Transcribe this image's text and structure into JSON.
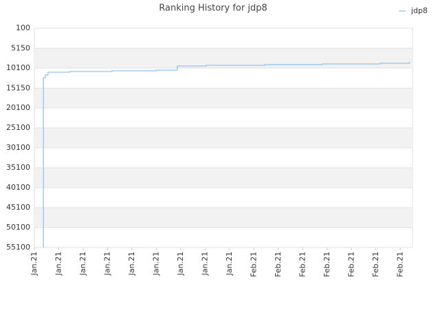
{
  "chart_data": {
    "type": "line",
    "title": "Ranking History for jdp8",
    "x": [
      0.37,
      0.37,
      0.37,
      0.45,
      0.45,
      0.56,
      0.56,
      1.44,
      1.44,
      3.18,
      3.18,
      4.99,
      4.99,
      5.86,
      5.86,
      7.04,
      7.04,
      9.44,
      9.44,
      11.8,
      11.8,
      14.17,
      14.17,
      15.38,
      15.38
    ],
    "series": [
      {
        "name": "jdp8",
        "color": "#8ec4f0",
        "values": [
          55100,
          36480,
          12510,
          12510,
          11820,
          11820,
          11130,
          11130,
          10960,
          10960,
          10790,
          10790,
          10620,
          10620,
          9580,
          9580,
          9410,
          9410,
          9240,
          9240,
          9070,
          9070,
          8890,
          8890,
          8550
        ]
      }
    ],
    "ylim": [
      100,
      55100
    ],
    "y_inverted": true,
    "yticks": [
      100,
      5150,
      10100,
      15150,
      20100,
      25100,
      30100,
      35100,
      40100,
      45100,
      50100,
      55100
    ],
    "xlim": [
      0,
      15.5
    ],
    "xticks": [
      {
        "value": 0,
        "label": "Jan.21"
      },
      {
        "value": 1,
        "label": "Jan.21"
      },
      {
        "value": 2,
        "label": "Jan.21"
      },
      {
        "value": 3,
        "label": "Jan.21"
      },
      {
        "value": 4,
        "label": "Jan.21"
      },
      {
        "value": 5,
        "label": "Jan.21"
      },
      {
        "value": 6,
        "label": "Jan.21"
      },
      {
        "value": 7,
        "label": "Jan.21"
      },
      {
        "value": 8,
        "label": "Jan.21"
      },
      {
        "value": 9,
        "label": "Feb.21"
      },
      {
        "value": 10,
        "label": "Feb.21"
      },
      {
        "value": 11,
        "label": "Feb.21"
      },
      {
        "value": 12,
        "label": "Feb.21"
      },
      {
        "value": 13,
        "label": "Feb.21"
      },
      {
        "value": 14,
        "label": "Feb.21"
      },
      {
        "value": 15,
        "label": "Feb.21"
      }
    ],
    "grid": true,
    "legend": "top-right"
  }
}
